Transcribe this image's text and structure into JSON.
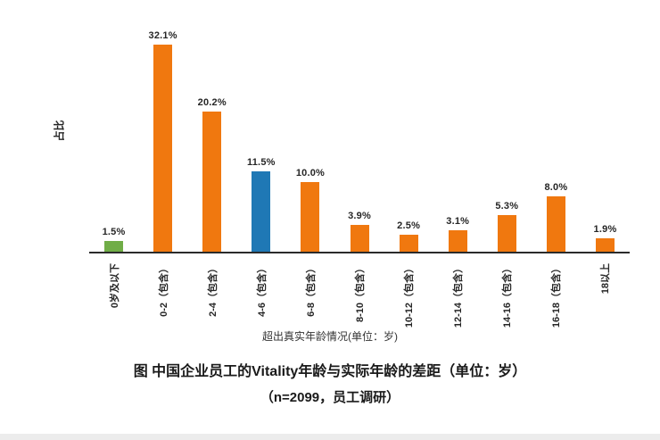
{
  "chart_data": {
    "type": "bar",
    "title": "图 中国企业员工的Vitality年龄与实际年龄的差距（单位：岁）",
    "subtitle": "（n=2099，员工调研）",
    "xlabel": "超出真实年龄情况(单位：岁)",
    "ylabel": "占比",
    "categories": [
      "0岁及以下",
      "0-2（包含）",
      "2-4（包含）",
      "4-6（包含）",
      "6-8（包含）",
      "8-10（包含）",
      "10-12（包含）",
      "12-14（包含）",
      "14-16（包含）",
      "16-18（包含）",
      "18以上"
    ],
    "values": [
      1.5,
      32.1,
      20.2,
      11.5,
      10.0,
      3.9,
      2.5,
      3.1,
      5.3,
      8.0,
      1.9
    ],
    "value_labels": [
      "1.5%",
      "32.1%",
      "20.2%",
      "11.5%",
      "10.0%",
      "3.9%",
      "2.5%",
      "3.1%",
      "5.3%",
      "8.0%",
      "1.9%"
    ],
    "bar_colors": [
      "#70AD47",
      "#F0780F",
      "#F0780F",
      "#1F78B5",
      "#F0780F",
      "#F0780F",
      "#F0780F",
      "#F0780F",
      "#F0780F",
      "#F0780F",
      "#F0780F"
    ],
    "ylim": [
      0,
      35
    ],
    "grid": false,
    "legend": null,
    "axis_color": "#2b2b2b"
  }
}
